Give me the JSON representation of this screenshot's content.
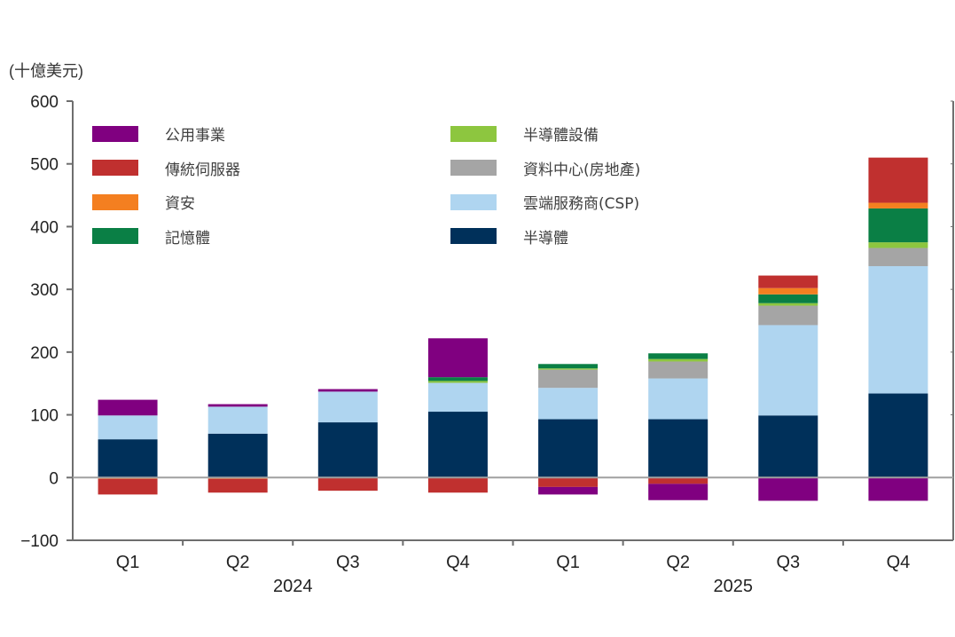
{
  "chart_data": {
    "type": "bar",
    "stacked": true,
    "unit_label": "(十億美元)",
    "ylim": [
      -100,
      600
    ],
    "yticks": [
      600,
      500,
      400,
      300,
      200,
      100,
      0,
      -100
    ],
    "categories": [
      "Q1",
      "Q2",
      "Q3",
      "Q4",
      "Q1",
      "Q2",
      "Q3",
      "Q4"
    ],
    "groups": [
      {
        "label": "2024",
        "span": [
          0,
          3
        ]
      },
      {
        "label": "2025",
        "span": [
          4,
          7
        ]
      }
    ],
    "legend_position": "top",
    "series": [
      {
        "name": "半導體",
        "color": "#00305a",
        "values": [
          61,
          70,
          88,
          105,
          93,
          93,
          99,
          134
        ]
      },
      {
        "name": "雲端服務商(CSP)",
        "color": "#afd5f0",
        "values": [
          38,
          43,
          49,
          46,
          50,
          65,
          144,
          203
        ]
      },
      {
        "name": "資料中心(房地產)",
        "color": "#a5a5a5",
        "values": [
          0,
          0,
          0,
          0,
          29,
          27,
          31,
          29
        ]
      },
      {
        "name": "半導體設備",
        "color": "#8dc63f",
        "values": [
          0,
          0,
          0,
          3,
          2,
          4,
          4,
          9
        ]
      },
      {
        "name": "記憶體",
        "color": "#0a7f45",
        "values": [
          0,
          0,
          0,
          6,
          7,
          9,
          14,
          54
        ]
      },
      {
        "name": "資安",
        "color": "#f47f20",
        "values": [
          -2,
          -2,
          0,
          0,
          0,
          0,
          10,
          9
        ]
      },
      {
        "name": "傳統伺服器",
        "color": "#c0302f",
        "values": [
          -25,
          -22,
          -21,
          -24,
          -15,
          -10,
          20,
          72
        ]
      },
      {
        "name": "公用事業",
        "color": "#800080",
        "values": [
          25,
          4,
          4,
          62,
          -12,
          -26,
          -37,
          -37
        ]
      }
    ],
    "legend": [
      {
        "name": "公用事業",
        "color": "#800080"
      },
      {
        "name": "傳統伺服器",
        "color": "#c0302f"
      },
      {
        "name": "資安",
        "color": "#f47f20"
      },
      {
        "name": "記憶體",
        "color": "#0a7f45"
      },
      {
        "name": "半導體設備",
        "color": "#8dc63f"
      },
      {
        "name": "資料中心(房地產)",
        "color": "#a5a5a5"
      },
      {
        "name": "雲端服務商(CSP)",
        "color": "#afd5f0"
      },
      {
        "name": "半導體",
        "color": "#00305a"
      }
    ]
  }
}
